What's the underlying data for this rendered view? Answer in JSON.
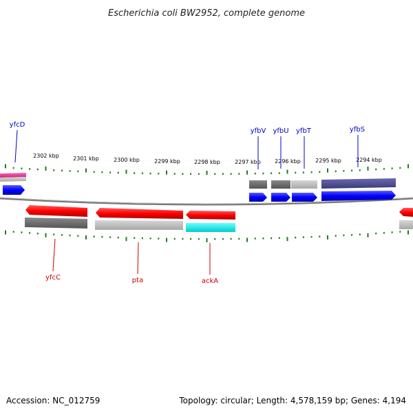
{
  "title": "Escherichia coli BW2952, complete genome",
  "footer": {
    "accession": "Accession: NC_012759",
    "summary": "Topology: circular; Length: 4,578,159 bp; Genes: 4,194"
  },
  "scale": {
    "labels": [
      "2302 kbp",
      "2301 kbp",
      "2300 kbp",
      "2299 kbp",
      "2298 kbp",
      "2297 kbp",
      "2296 kbp",
      "2295 kbp",
      "2294 kbp"
    ]
  },
  "genes_top": [
    {
      "name": "yfcD",
      "color": "#0000cc"
    },
    {
      "name": "yfbV",
      "color": "#0000cc"
    },
    {
      "name": "yfbU",
      "color": "#0000cc"
    },
    {
      "name": "yfbT",
      "color": "#0000cc"
    },
    {
      "name": "yfbS",
      "color": "#0000cc"
    }
  ],
  "genes_bottom": [
    {
      "name": "yfcC",
      "color": "#cc0000"
    },
    {
      "name": "pta",
      "color": "#cc0000"
    },
    {
      "name": "ackA",
      "color": "#cc0000"
    }
  ],
  "colors": {
    "forward_cds": "#0000ff",
    "reverse_cds": "#ff0000",
    "backbone": "#888888",
    "ticks": "#1a7f1a",
    "cog_dark": "#666666",
    "cog_light": "#bbbbbb",
    "cog_purple": "#4b4b8f",
    "cog_cyan": "#00e5e5",
    "cog_magenta": "#ee3399"
  }
}
